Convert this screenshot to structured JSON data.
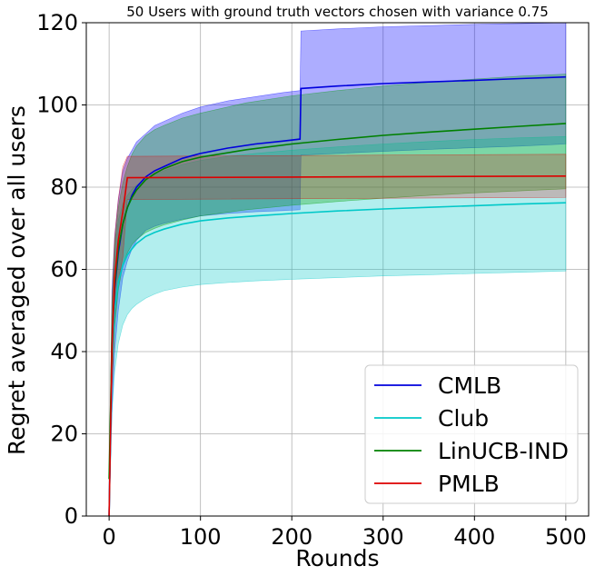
{
  "chart_data": {
    "type": "line",
    "title": "50 Users with ground truth vectors chosen with variance 0.75",
    "xlabel": "Rounds",
    "ylabel": "Regret averaged over all users",
    "xlim": [
      -25,
      525
    ],
    "ylim": [
      0,
      120
    ],
    "xticks": [
      0,
      100,
      200,
      300,
      400,
      500
    ],
    "yticks": [
      0,
      20,
      40,
      60,
      80,
      100,
      120
    ],
    "grid": true,
    "legend_position": "lower-right",
    "series": [
      {
        "name": "CMLB",
        "color": "#0000dd",
        "band_color": "#0000ff",
        "band_opacity": 0.32,
        "x": [
          0,
          3,
          6,
          10,
          15,
          20,
          25,
          30,
          40,
          50,
          60,
          80,
          100,
          130,
          160,
          190,
          209,
          210,
          250,
          300,
          350,
          400,
          450,
          500
        ],
        "y": [
          0,
          40,
          55,
          64,
          71,
          75,
          78,
          80,
          82.5,
          84,
          85,
          87,
          88.2,
          89.5,
          90.5,
          91.2,
          91.7,
          104,
          104.6,
          105.2,
          105.6,
          106,
          106.4,
          106.8
        ],
        "lower": [
          0,
          25,
          40,
          50,
          58,
          62,
          65,
          67,
          69.5,
          70.5,
          71.2,
          72.2,
          73,
          73.6,
          74,
          74.3,
          74.5,
          87.8,
          88.2,
          88.7,
          89.2,
          89.6,
          90,
          90.5
        ],
        "upper": [
          0,
          55,
          68,
          77,
          84,
          87,
          89,
          91,
          93,
          95,
          96,
          98,
          99.5,
          101,
          102,
          103,
          103.5,
          118,
          118.5,
          119,
          119.3,
          119.6,
          119.8,
          120
        ]
      },
      {
        "name": "Club",
        "color": "#00c8c8",
        "band_color": "#00c8c8",
        "band_opacity": 0.3,
        "x": [
          0,
          3,
          6,
          10,
          15,
          20,
          25,
          30,
          40,
          50,
          60,
          80,
          100,
          130,
          160,
          200,
          250,
          300,
          350,
          400,
          450,
          500
        ],
        "y": [
          0,
          38,
          50,
          57,
          61,
          63.5,
          65,
          66.3,
          68,
          69,
          69.8,
          71,
          71.8,
          72.5,
          73,
          73.6,
          74.2,
          74.7,
          75.1,
          75.5,
          75.9,
          76.2
        ],
        "lower": [
          0,
          25,
          35,
          42,
          46.5,
          49,
          50.5,
          51.5,
          53,
          54,
          54.8,
          55.7,
          56.3,
          56.8,
          57.2,
          57.6,
          58,
          58.4,
          58.7,
          59,
          59.3,
          59.6
        ],
        "upper": [
          0,
          50,
          65,
          72,
          76,
          78,
          79.5,
          80.5,
          82,
          83,
          84,
          85.5,
          86.5,
          87.5,
          88.2,
          89,
          89.8,
          90.5,
          91.1,
          91.6,
          92,
          92.3
        ]
      },
      {
        "name": "LinUCB-IND",
        "color": "#008000",
        "band_color": "#00a000",
        "band_opacity": 0.3,
        "x": [
          0,
          3,
          6,
          10,
          15,
          20,
          25,
          30,
          40,
          50,
          60,
          80,
          100,
          150,
          200,
          250,
          300,
          350,
          400,
          450,
          500
        ],
        "y": [
          9,
          42,
          56,
          65,
          71,
          75,
          77.5,
          79.3,
          81.8,
          83.3,
          84.5,
          86.2,
          87.3,
          89.1,
          90.5,
          91.6,
          92.6,
          93.4,
          94.1,
          94.8,
          95.5
        ],
        "lower": [
          9,
          32,
          46,
          55,
          61,
          64,
          66,
          67.3,
          69,
          70,
          70.8,
          72,
          73,
          74.5,
          75.6,
          76.5,
          77.3,
          78,
          78.6,
          79.1,
          79.6
        ],
        "upper": [
          9,
          52,
          66,
          75,
          81,
          85,
          88,
          90,
          92.5,
          94,
          95,
          96.8,
          98,
          100.5,
          102.2,
          103.5,
          104.6,
          105.5,
          106.3,
          107,
          107.5
        ]
      },
      {
        "name": "PMLB",
        "color": "#dd0000",
        "band_color": "#e00000",
        "band_opacity": 0.22,
        "x": [
          0,
          3,
          6,
          10,
          15,
          20,
          500
        ],
        "y": [
          0,
          40,
          58,
          67,
          74,
          82.3,
          82.7
        ],
        "lower": [
          0,
          30,
          48,
          57,
          63,
          77,
          77.5
        ],
        "upper": [
          0,
          50,
          68,
          77,
          85,
          87.5,
          88
        ]
      }
    ]
  }
}
